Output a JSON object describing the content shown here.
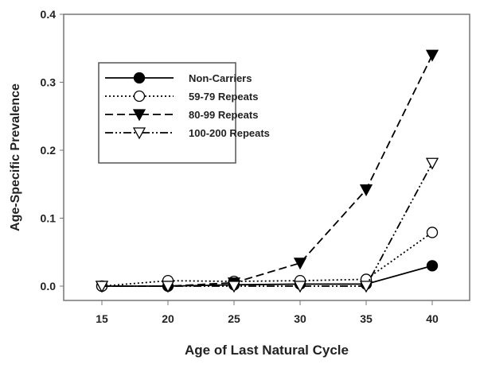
{
  "chart_data": {
    "type": "line",
    "title": "",
    "xlabel": "Age of Last Natural Cycle",
    "ylabel": "Age-Specific Prevalence",
    "x": [
      15,
      20,
      25,
      30,
      35,
      40
    ],
    "xlim": [
      12.5,
      42
    ],
    "ylim": [
      -0.02,
      0.4
    ],
    "xticks": [
      "15",
      "20",
      "25",
      "30",
      "35",
      "40"
    ],
    "yticks": [
      "0.0",
      "0.1",
      "0.2",
      "0.3",
      "0.4"
    ],
    "legend_position": "upper-left",
    "grid": false,
    "series": [
      {
        "name": "Non-Carriers",
        "values": [
          0,
          0,
          0.002,
          0.003,
          0.003,
          0.03
        ],
        "marker": "filled-circle",
        "dash": "solid"
      },
      {
        "name": "59-79 Repeats",
        "values": [
          0,
          0.008,
          0.007,
          0.008,
          0.01,
          0.079
        ],
        "marker": "open-circle",
        "dash": "dotted"
      },
      {
        "name": "80-99 Repeats",
        "values": [
          0,
          0,
          0.005,
          0.034,
          0.142,
          0.34
        ],
        "marker": "filled-triangle-down",
        "dash": "dashed"
      },
      {
        "name": "100-200 Repeats",
        "values": [
          0,
          0,
          0,
          0,
          0,
          0.181
        ],
        "marker": "open-triangle-down",
        "dash": "dash-dot-dot"
      }
    ]
  }
}
